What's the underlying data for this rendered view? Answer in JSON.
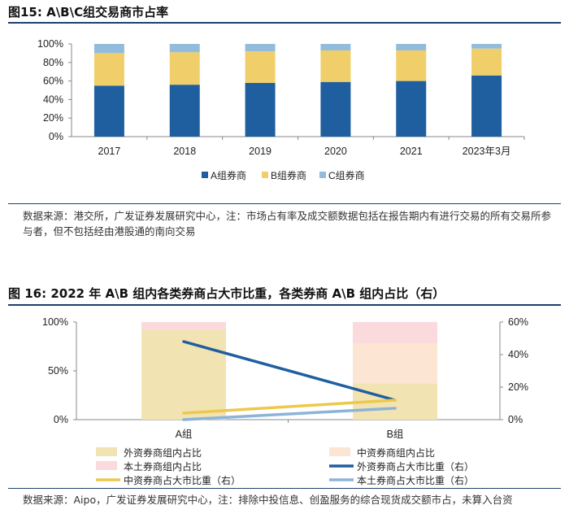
{
  "figure15": {
    "title": "图15:  A\\B\\C组交易商市占率",
    "source": "数据来源：港交所，广发证券发展研究中心，注：市场占有率及成交额数据包括在报告期内有进行交易的所有交易所参与者，但不包括经由港股通的南向交易"
  },
  "figure16": {
    "title": "图 16:  2022 年 A\\B 组内各类券商占大市比重，各类券商 A\\B 组内占比（右）",
    "source": "数据来源：Aipo，广发证券发展研究中心，注：排除中投信息、创盈服务的综合现货成交额市占，未算入台资"
  },
  "colors": {
    "blue": "#1f5fa0",
    "yellow": "#f0cf6a",
    "lightblue": "#93bcdc",
    "beige": "#f2e3b2",
    "pink": "#fadadd",
    "peach": "#fce5d2",
    "gold": "#ecc84c",
    "skyblue": "#8cb4d8"
  },
  "chart_data": [
    {
      "type": "bar",
      "stacked": true,
      "categories": [
        "2017",
        "2018",
        "2019",
        "2020",
        "2021",
        "2023年3月"
      ],
      "series": [
        {
          "name": "A组券商",
          "values": [
            55,
            56,
            58,
            59,
            60,
            66
          ]
        },
        {
          "name": "B组券商",
          "values": [
            35,
            35,
            34,
            34,
            33,
            29
          ]
        },
        {
          "name": "C组券商",
          "values": [
            10,
            9,
            8,
            7,
            7,
            5
          ]
        }
      ],
      "ylim": [
        0,
        100
      ],
      "yticks": [
        "0%",
        "20%",
        "40%",
        "60%",
        "80%",
        "100%"
      ],
      "legend": [
        "A组券商",
        "B组券商",
        "C组券商"
      ]
    },
    {
      "type": "bar",
      "stacked": true,
      "categories": [
        "A组",
        "B组"
      ],
      "series": [
        {
          "name": "外资券商组内占比",
          "values": [
            92,
            37
          ],
          "axis": "left"
        },
        {
          "name": "中资券商组内占比",
          "values": [
            0,
            41
          ],
          "axis": "left"
        },
        {
          "name": "本土券商组内占比",
          "values": [
            8,
            22
          ],
          "axis": "left"
        }
      ],
      "lines": [
        {
          "name": "外资券商占大市比重（右）",
          "values": [
            48,
            12
          ],
          "axis": "right"
        },
        {
          "name": "中资券商占大市比重（右）",
          "values": [
            4,
            12
          ],
          "axis": "right"
        },
        {
          "name": "本土券商占大市比重（右）",
          "values": [
            0,
            7
          ],
          "axis": "right"
        }
      ],
      "ylim_left": [
        0,
        100
      ],
      "yticks_left": [
        "0%",
        "50%",
        "100%"
      ],
      "ylim_right": [
        0,
        60
      ],
      "yticks_right": [
        "0%",
        "20%",
        "40%",
        "60%"
      ],
      "legend": [
        "外资券商组内占比",
        "中资券商组内占比",
        "本土券商组内占比",
        "外资券商占大市比重（右）",
        "中资券商占大市比重（右）",
        "本土券商占大市比重（右）"
      ]
    }
  ]
}
